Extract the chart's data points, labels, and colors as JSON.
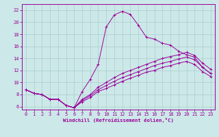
{
  "xlabel": "Windchill (Refroidissement éolien,°C)",
  "background_color": "#cce8e8",
  "grid_color": "#aacece",
  "line_color": "#990099",
  "xlim": [
    -0.5,
    23.5
  ],
  "ylim": [
    5.5,
    23.0
  ],
  "xticks": [
    0,
    1,
    2,
    3,
    4,
    5,
    6,
    7,
    8,
    9,
    10,
    11,
    12,
    13,
    14,
    15,
    16,
    17,
    18,
    19,
    20,
    21,
    22,
    23
  ],
  "yticks": [
    6,
    8,
    10,
    12,
    14,
    16,
    18,
    20,
    22
  ],
  "curve1_x": [
    0,
    1,
    2,
    3,
    4,
    5,
    6,
    7,
    8,
    9,
    10,
    11,
    12,
    13,
    14,
    15,
    16,
    17,
    18,
    19,
    20,
    21,
    22,
    23
  ],
  "curve1_y": [
    8.8,
    8.2,
    8.0,
    7.2,
    7.2,
    6.2,
    5.8,
    8.5,
    10.5,
    13.0,
    19.2,
    21.2,
    21.8,
    21.3,
    19.5,
    17.5,
    17.2,
    16.5,
    16.2,
    15.2,
    14.6,
    14.2,
    12.5,
    11.5
  ],
  "curve2_x": [
    0,
    1,
    2,
    3,
    4,
    5,
    6,
    7,
    8,
    9,
    10,
    11,
    12,
    13,
    14,
    15,
    16,
    17,
    18,
    19,
    20,
    21,
    22,
    23
  ],
  "curve2_y": [
    8.8,
    8.2,
    8.0,
    7.2,
    7.2,
    6.2,
    5.8,
    7.2,
    8.0,
    9.2,
    10.0,
    10.8,
    11.5,
    12.0,
    12.5,
    13.0,
    13.5,
    14.0,
    14.3,
    14.6,
    15.0,
    14.5,
    13.2,
    12.2
  ],
  "curve3_x": [
    0,
    1,
    2,
    3,
    4,
    5,
    6,
    7,
    8,
    9,
    10,
    11,
    12,
    13,
    14,
    15,
    16,
    17,
    18,
    19,
    20,
    21,
    22,
    23
  ],
  "curve3_y": [
    8.8,
    8.2,
    8.0,
    7.2,
    7.2,
    6.2,
    5.8,
    7.0,
    7.8,
    8.8,
    9.5,
    10.2,
    10.8,
    11.3,
    11.8,
    12.3,
    12.8,
    13.2,
    13.5,
    13.9,
    14.2,
    13.8,
    12.5,
    11.5
  ],
  "curve4_x": [
    0,
    1,
    2,
    3,
    4,
    5,
    6,
    7,
    8,
    9,
    10,
    11,
    12,
    13,
    14,
    15,
    16,
    17,
    18,
    19,
    20,
    21,
    22,
    23
  ],
  "curve4_y": [
    8.8,
    8.2,
    8.0,
    7.2,
    7.2,
    6.2,
    5.8,
    6.8,
    7.5,
    8.5,
    9.0,
    9.6,
    10.2,
    10.7,
    11.2,
    11.7,
    12.0,
    12.5,
    12.8,
    13.2,
    13.5,
    13.0,
    11.8,
    11.0
  ],
  "tick_fontsize": 5.0,
  "xlabel_fontsize": 5.2,
  "marker": "+"
}
